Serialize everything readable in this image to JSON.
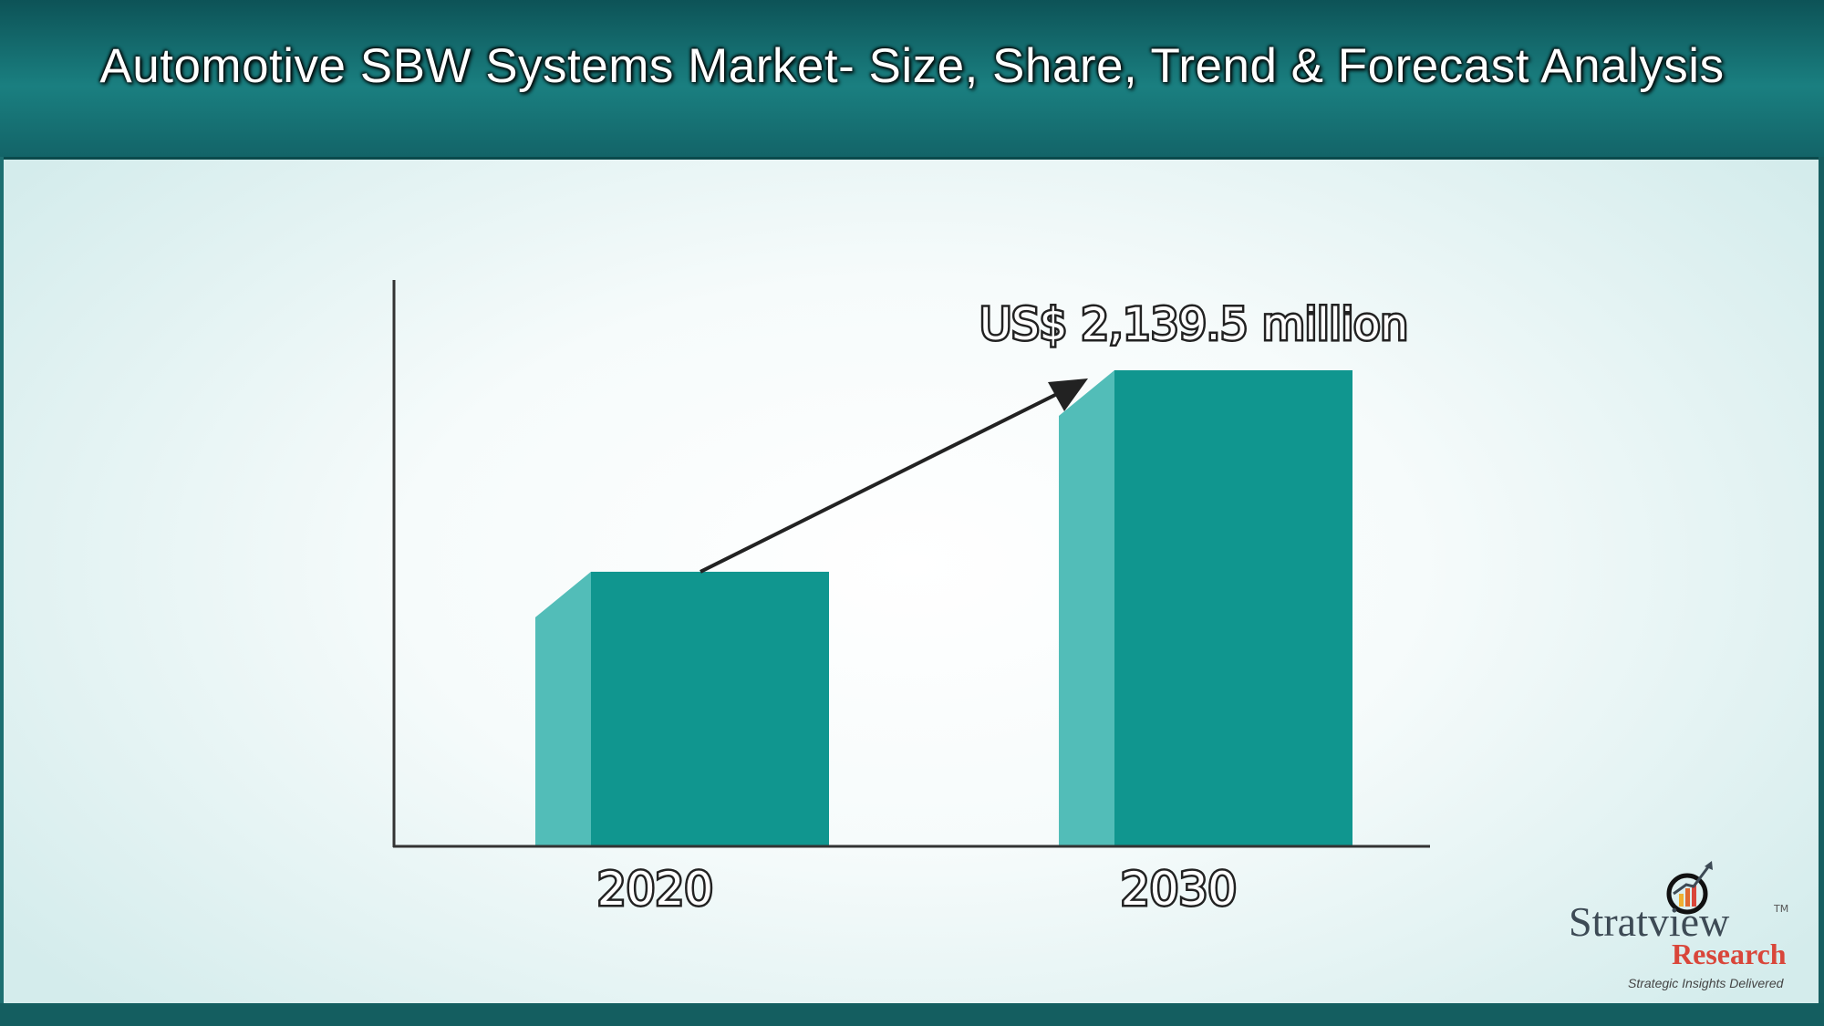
{
  "header": {
    "title": "Automotive SBW Systems Market- Size, Share, Trend & Forecast Analysis"
  },
  "chart_data": {
    "type": "bar",
    "title": "",
    "categories": [
      "2020",
      "2030"
    ],
    "values": [
      1234,
      2139.5
    ],
    "annotations": [
      {
        "category": "2030",
        "text": "US$ 2,139.5 million"
      }
    ],
    "unit": "US$ million",
    "ylim": [
      0,
      2300
    ],
    "grid": false,
    "colors": {
      "bar_front": "#10968f",
      "bar_side": "#52bdb8",
      "axis": "#333333",
      "arrow": "#222222"
    },
    "trend_arrow": {
      "from": "2020",
      "to": "2030"
    }
  },
  "logo": {
    "brand": "Stratview",
    "tm": "TM",
    "sub": "Research",
    "tagline": "Strategic Insights Delivered"
  }
}
